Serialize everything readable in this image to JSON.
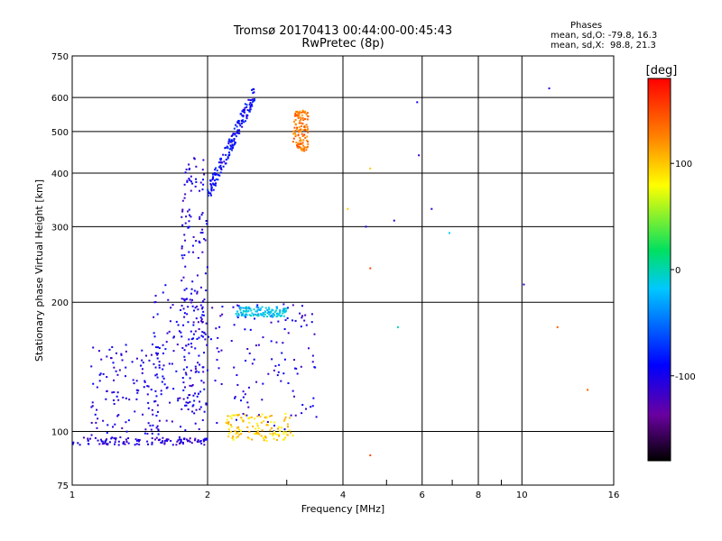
{
  "title_line1": "Tromsø 20170413 00:44:00-00:45:43",
  "title_line2": "RwPretec (8p)",
  "phases": {
    "heading": "Phases",
    "o_line": "mean, sd,O: -79.8, 16.3",
    "x_line": "mean, sd,X:  98.8, 21.3"
  },
  "colorbar": {
    "label": "[deg]",
    "ticks": [
      {
        "value": 100,
        "label": "100"
      },
      {
        "value": 0,
        "label": "0"
      },
      {
        "value": -100,
        "label": "-100"
      }
    ],
    "range": [
      -180,
      180
    ]
  },
  "chart_data": {
    "type": "scatter",
    "xlabel": "Frequency [MHz]",
    "ylabel": "Stationary phase Virtual Height [km]",
    "xscale": "log",
    "yscale": "log",
    "xlim": [
      1,
      16
    ],
    "ylim": [
      75,
      750
    ],
    "xticks": [
      1,
      2,
      4,
      6,
      8,
      10,
      16
    ],
    "yticks": [
      75,
      100,
      200,
      300,
      400,
      500,
      600,
      750
    ],
    "grid": true,
    "legend": "colorbar-right",
    "clusters": [
      {
        "region": "E-layer trace",
        "x_range": [
          1.0,
          2.0
        ],
        "y_range": [
          93,
          97
        ],
        "phase": -110
      },
      {
        "region": "lower spread",
        "x_range": [
          1.1,
          1.6
        ],
        "y_range": [
          98,
          160
        ],
        "phase": -105
      },
      {
        "region": "mid spread",
        "x_range": [
          1.5,
          2.0
        ],
        "y_range": [
          100,
          220
        ],
        "phase": -100
      },
      {
        "region": "vertical trace",
        "x_range": [
          1.75,
          2.0
        ],
        "y_range": [
          110,
          440
        ],
        "phase": -105
      },
      {
        "region": "F-layer trace",
        "x_range": [
          2.0,
          2.55
        ],
        "y_range": [
          340,
          650
        ],
        "phase": -90
      },
      {
        "region": "spread 2-3.5",
        "x_range": [
          2.0,
          3.5
        ],
        "y_range": [
          100,
          200
        ],
        "phase": -105
      },
      {
        "region": "X-mode cluster",
        "x_range": [
          3.1,
          3.35
        ],
        "y_range": [
          450,
          560
        ],
        "phase": 130
      },
      {
        "region": "yellow low cluster",
        "x_range": [
          2.2,
          3.1
        ],
        "y_range": [
          95,
          110
        ],
        "phase": 95
      },
      {
        "region": "cyan patch",
        "x_range": [
          2.3,
          3.0
        ],
        "y_range": [
          185,
          195
        ],
        "phase": -20
      }
    ],
    "isolated_points": [
      {
        "x": 11.5,
        "y": 630,
        "phase": -110
      },
      {
        "x": 10.1,
        "y": 220,
        "phase": -100
      },
      {
        "x": 6.3,
        "y": 330,
        "phase": -110
      },
      {
        "x": 6.9,
        "y": 290,
        "phase": -20
      },
      {
        "x": 5.9,
        "y": 440,
        "phase": -120
      },
      {
        "x": 5.85,
        "y": 585,
        "phase": -100
      },
      {
        "x": 4.5,
        "y": 300,
        "phase": -100
      },
      {
        "x": 5.2,
        "y": 310,
        "phase": -110
      },
      {
        "x": 4.6,
        "y": 240,
        "phase": 150
      },
      {
        "x": 4.6,
        "y": 410,
        "phase": 100
      },
      {
        "x": 4.1,
        "y": 330,
        "phase": 100
      },
      {
        "x": 12.0,
        "y": 175,
        "phase": 140
      },
      {
        "x": 14.0,
        "y": 125,
        "phase": 140
      },
      {
        "x": 4.6,
        "y": 88,
        "phase": 150
      },
      {
        "x": 5.3,
        "y": 175,
        "phase": 0
      }
    ]
  }
}
